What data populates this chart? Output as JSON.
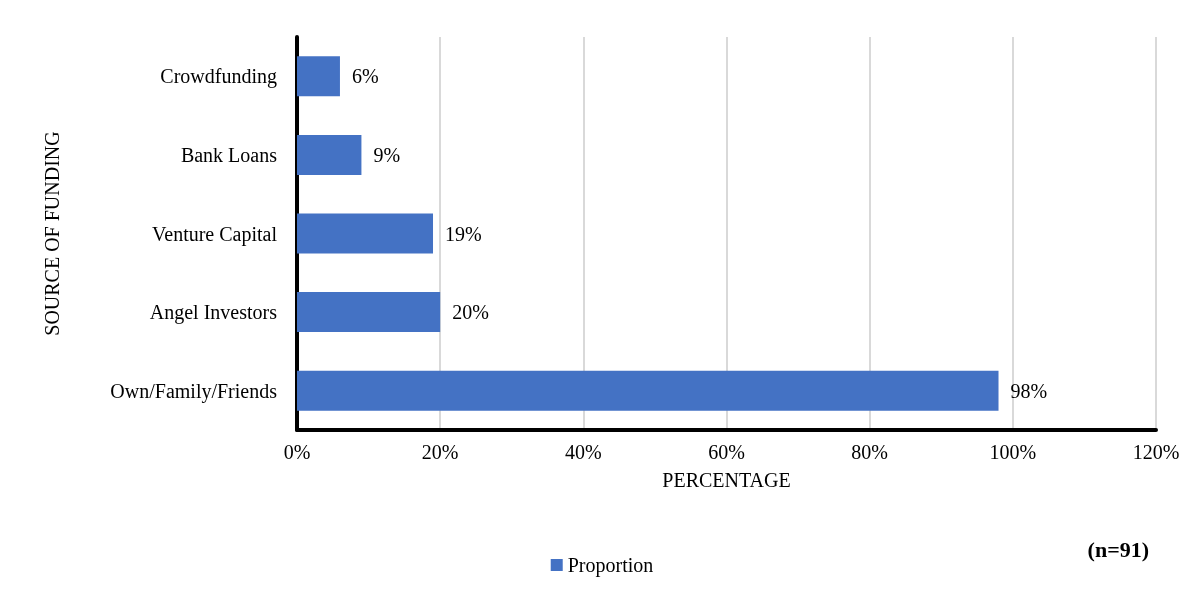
{
  "chart_data": {
    "type": "bar",
    "orientation": "horizontal",
    "xlabel": "PERCENTAGE",
    "ylabel": "SOURCE OF FUNDING",
    "categories": [
      "Crowdfunding",
      "Bank Loans",
      "Venture Capital",
      "Angel Investors",
      "Own/Family/Friends"
    ],
    "series": [
      {
        "name": "Proportion",
        "color": "#4472c4",
        "values": [
          6,
          9,
          19,
          20,
          98
        ],
        "value_labels": [
          "6%",
          "9%",
          "19%",
          "20%",
          "98%"
        ]
      }
    ],
    "xlim": [
      0,
      120
    ],
    "xticks": [
      {
        "value": 0,
        "label": "0%"
      },
      {
        "value": 20,
        "label": "20%"
      },
      {
        "value": 40,
        "label": "40%"
      },
      {
        "value": 60,
        "label": "60%"
      },
      {
        "value": 80,
        "label": "80%"
      },
      {
        "value": 100,
        "label": "100%"
      },
      {
        "value": 120,
        "label": "120%"
      }
    ],
    "grid": "x",
    "legend": "bottom",
    "annotations": [
      "(n=91)"
    ]
  }
}
